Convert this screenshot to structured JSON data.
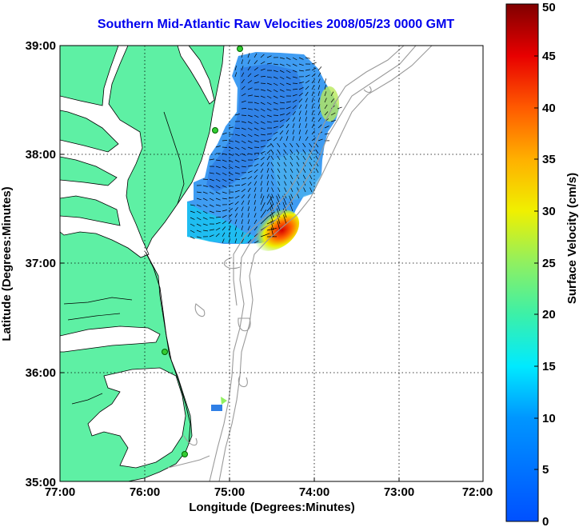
{
  "title": "Southern Mid-Atlantic Raw Velocities 2008/05/23 0000 GMT",
  "x_axis": {
    "label": "Longitude (Degrees:Minutes)",
    "ticks": [
      "77:00",
      "76:00",
      "75:00",
      "74:00",
      "73:00",
      "72:00"
    ],
    "range": [
      -77,
      -72
    ]
  },
  "y_axis": {
    "label": "Latitude (Degrees:Minutes)",
    "ticks": [
      "35:00",
      "36:00",
      "37:00",
      "38:00",
      "39:00"
    ],
    "range": [
      35,
      39
    ]
  },
  "colorbar": {
    "label": "Surface Velocity (cm/s)",
    "ticks": [
      "0",
      "5",
      "10",
      "15",
      "20",
      "25",
      "30",
      "35",
      "40",
      "45",
      "50"
    ],
    "range": [
      0,
      50
    ]
  },
  "colors": {
    "land": "#5ef0a4",
    "title": "#0000ee",
    "bathymetry": "#9a9a9a"
  },
  "grid": "dotted"
}
